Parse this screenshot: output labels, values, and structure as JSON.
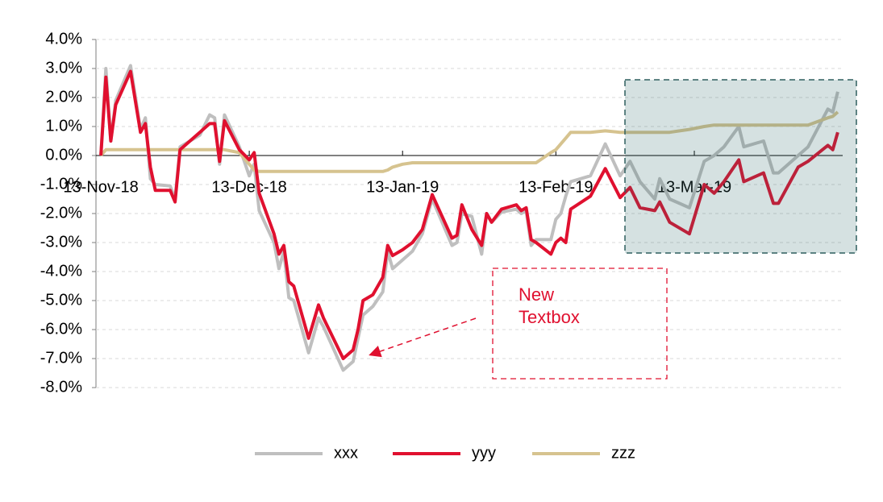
{
  "chart_data": {
    "type": "line",
    "annotation": "New Textbox",
    "x": [
      "2018-11-13",
      "2018-11-14",
      "2018-11-15",
      "2018-11-16",
      "2018-11-19",
      "2018-11-21",
      "2018-11-22",
      "2018-11-23",
      "2018-11-24",
      "2018-11-27",
      "2018-11-28",
      "2018-11-29",
      "2018-12-03",
      "2018-12-05",
      "2018-12-06",
      "2018-12-07",
      "2018-12-08",
      "2018-12-11",
      "2018-12-13",
      "2018-12-14",
      "2018-12-15",
      "2018-12-18",
      "2018-12-19",
      "2018-12-20",
      "2018-12-21",
      "2018-12-22",
      "2018-12-25",
      "2018-12-27",
      "2018-12-28",
      "2019-01-01",
      "2019-01-03",
      "2019-01-04",
      "2019-01-05",
      "2019-01-07",
      "2019-01-09",
      "2019-01-10",
      "2019-01-11",
      "2019-01-13",
      "2019-01-15",
      "2019-01-17",
      "2019-01-19",
      "2019-01-23",
      "2019-01-24",
      "2019-01-25",
      "2019-01-27",
      "2019-01-29",
      "2019-01-30",
      "2019-01-31",
      "2019-02-02",
      "2019-02-05",
      "2019-02-06",
      "2019-02-07",
      "2019-02-08",
      "2019-02-09",
      "2019-02-12",
      "2019-02-13",
      "2019-02-14",
      "2019-02-15",
      "2019-02-16",
      "2019-02-20",
      "2019-02-23",
      "2019-02-26",
      "2019-02-28",
      "2019-03-02",
      "2019-03-05",
      "2019-03-06",
      "2019-03-08",
      "2019-03-12",
      "2019-03-15",
      "2019-03-17",
      "2019-03-19",
      "2019-03-22",
      "2019-03-23",
      "2019-03-27",
      "2019-03-29",
      "2019-03-30",
      "2019-04-03",
      "2019-04-05",
      "2019-04-09",
      "2019-04-10",
      "2019-04-11"
    ],
    "series": [
      {
        "name": "xxx",
        "color": "#bfbfbf",
        "values": [
          0.0,
          3.0,
          0.5,
          1.9,
          3.1,
          0.9,
          1.3,
          -0.8,
          -1.0,
          -1.05,
          -1.5,
          0.3,
          0.7,
          1.4,
          1.3,
          -0.3,
          1.4,
          0.3,
          -0.7,
          -0.3,
          -1.9,
          -3.0,
          -3.9,
          -3.3,
          -4.9,
          -5.0,
          -6.8,
          -5.6,
          -5.9,
          -7.4,
          -7.1,
          -6.3,
          -5.5,
          -5.2,
          -4.7,
          -3.3,
          -3.9,
          -3.6,
          -3.3,
          -2.7,
          -1.5,
          -3.1,
          -3.0,
          -2.0,
          -2.1,
          -3.4,
          -2.0,
          -2.3,
          -1.95,
          -1.85,
          -2.0,
          -1.9,
          -3.1,
          -2.9,
          -2.9,
          -2.2,
          -2.0,
          -1.4,
          -0.9,
          -0.7,
          0.4,
          -0.7,
          -0.2,
          -0.9,
          -1.5,
          -0.8,
          -1.5,
          -1.8,
          -0.2,
          0.0,
          0.3,
          1.0,
          0.3,
          0.5,
          -0.6,
          -0.6,
          0.0,
          0.3,
          1.6,
          1.5,
          2.2
        ]
      },
      {
        "name": "yyy",
        "color": "#e0102f",
        "values": [
          0.0,
          2.7,
          0.5,
          1.75,
          2.9,
          0.8,
          1.1,
          -0.4,
          -1.2,
          -1.2,
          -1.6,
          0.2,
          0.8,
          1.1,
          1.1,
          -0.2,
          1.2,
          0.2,
          -0.15,
          0.1,
          -1.3,
          -2.7,
          -3.4,
          -3.1,
          -4.35,
          -4.5,
          -6.3,
          -5.15,
          -5.6,
          -7.0,
          -6.7,
          -6.0,
          -5.0,
          -4.8,
          -4.2,
          -3.1,
          -3.45,
          -3.25,
          -3.0,
          -2.55,
          -1.35,
          -2.85,
          -2.75,
          -1.7,
          -2.55,
          -3.1,
          -2.0,
          -2.3,
          -1.85,
          -1.7,
          -1.9,
          -1.8,
          -2.9,
          -3.0,
          -3.4,
          -3.0,
          -2.85,
          -3.0,
          -1.85,
          -1.4,
          -0.45,
          -1.45,
          -1.1,
          -1.8,
          -1.9,
          -1.6,
          -2.3,
          -2.7,
          -1.0,
          -1.3,
          -0.9,
          -0.15,
          -0.9,
          -0.6,
          -1.65,
          -1.65,
          -0.4,
          -0.2,
          0.35,
          0.2,
          0.8
        ]
      },
      {
        "name": "zzz",
        "color": "#d6c38f",
        "values": [
          0.0,
          0.2,
          0.2,
          0.2,
          0.2,
          0.2,
          0.2,
          0.2,
          0.2,
          0.2,
          0.2,
          0.2,
          0.2,
          0.2,
          0.2,
          0.2,
          0.2,
          0.1,
          -0.3,
          -0.5,
          -0.55,
          -0.55,
          -0.55,
          -0.55,
          -0.55,
          -0.55,
          -0.55,
          -0.55,
          -0.55,
          -0.55,
          -0.55,
          -0.55,
          -0.55,
          -0.55,
          -0.55,
          -0.5,
          -0.4,
          -0.3,
          -0.25,
          -0.25,
          -0.25,
          -0.25,
          -0.25,
          -0.25,
          -0.25,
          -0.25,
          -0.25,
          -0.25,
          -0.25,
          -0.25,
          -0.25,
          -0.25,
          -0.25,
          -0.25,
          0.1,
          0.2,
          0.4,
          0.6,
          0.8,
          0.8,
          0.85,
          0.8,
          0.8,
          0.8,
          0.8,
          0.8,
          0.8,
          0.9,
          1.0,
          1.05,
          1.05,
          1.05,
          1.05,
          1.05,
          1.05,
          1.05,
          1.05,
          1.05,
          1.3,
          1.35,
          1.5
        ]
      }
    ],
    "xlim": [
      "2018-11-12",
      "2019-04-12"
    ],
    "xticks": [
      {
        "value": "2018-11-13",
        "label": "13-Nov-18"
      },
      {
        "value": "2018-12-13",
        "label": "13-Dec-18"
      },
      {
        "value": "2019-01-13",
        "label": "13-Jan-19"
      },
      {
        "value": "2019-02-13",
        "label": "13-Feb-19"
      },
      {
        "value": "2019-03-13",
        "label": "13-Mar-19"
      }
    ],
    "ylim": [
      -8,
      4
    ],
    "yticks": [
      {
        "value": -8,
        "label": "-8.0%"
      },
      {
        "value": -7,
        "label": "-7.0%"
      },
      {
        "value": -6,
        "label": "-6.0%"
      },
      {
        "value": -5,
        "label": "-5.0%"
      },
      {
        "value": -4,
        "label": "-4.0%"
      },
      {
        "value": -3,
        "label": "-3.0%"
      },
      {
        "value": -2,
        "label": "-2.0%"
      },
      {
        "value": -1,
        "label": "-1.0%"
      },
      {
        "value": 0,
        "label": "0.0%"
      },
      {
        "value": 1,
        "label": "1.0%"
      },
      {
        "value": 2,
        "label": "2.0%"
      },
      {
        "value": 3,
        "label": "3.0%"
      },
      {
        "value": 4,
        "label": "4.0%"
      }
    ],
    "grid": true,
    "legend": "bottom"
  }
}
